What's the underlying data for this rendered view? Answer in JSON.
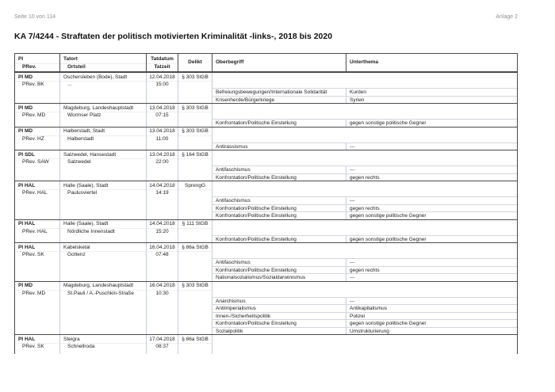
{
  "page": {
    "footer_left": "Seite 10 von 114",
    "footer_right": "Anlage 2",
    "title": "KA 7/4244 - Straftaten der politisch motivierten Kriminalität -links-, 2018 bis 2020"
  },
  "table": {
    "headers": {
      "pi": "PI",
      "prev": "PRev.",
      "tatort": "Tatort",
      "ortsteil": "Ortsteil",
      "tatdatum": "Tatdatum",
      "tatzeit": "Tatzeit",
      "delikt": "Delikt",
      "oberbegriff": "Oberbegriff",
      "unterthema": "Unterthema"
    },
    "records": [
      {
        "pi": "PI MD",
        "prev": "PRev. BK",
        "tatort": "Oschersleben (Bode), Stadt",
        "ortsteil": "...",
        "tatdatum": "12.04.2018",
        "tatzeit": "15:00",
        "delikt": "§ 303 StGB",
        "topics": [
          {
            "oberbegriff": "Befreiungsbewegungen/Internationale Solidarität",
            "unterthema": "Kurden"
          },
          {
            "oberbegriff": "Krisenherde/Bürgerkriege",
            "unterthema": "Syrien"
          }
        ]
      },
      {
        "pi": "PI MD",
        "prev": "PRev. MD",
        "tatort": "Magdeburg, Landeshauptstadt",
        "ortsteil": "Wormser Platz",
        "tatdatum": "13.04.2018",
        "tatzeit": "07:15",
        "delikt": "§ 303 StGB",
        "topics": [
          {
            "oberbegriff": "Konfrontation/Politische Einstellung",
            "unterthema": "gegen sonstige politische Gegner"
          }
        ]
      },
      {
        "pi": "PI MD",
        "prev": "PRev. HZ",
        "tatort": "Halberstadt, Stadt",
        "ortsteil": "Halberstadt",
        "tatdatum": "13.04.2018",
        "tatzeit": "11:00",
        "delikt": "§ 303 StGB",
        "topics": [
          {
            "oberbegriff": "Antirassismus",
            "unterthema": "---"
          }
        ]
      },
      {
        "pi": "PI SDL",
        "prev": "PRev. SAW",
        "tatort": "Salzwedel, Hansestadt",
        "ortsteil": "Salzwedel",
        "tatdatum": "13.04.2018",
        "tatzeit": "22:00",
        "delikt": "§ 164 StGB",
        "topics": [
          {
            "oberbegriff": "Antifaschismus",
            "unterthema": "---"
          },
          {
            "oberbegriff": "Konfrontation/Politische Einstellung",
            "unterthema": "gegen rechts"
          }
        ]
      },
      {
        "pi": "PI HAL",
        "prev": "PRev. HAL",
        "tatort": "Halle (Saale), Stadt",
        "ortsteil": "Paulusviertel",
        "tatdatum": "14.04.2018",
        "tatzeit": "14:19",
        "delikt": "SprengG",
        "topics": [
          {
            "oberbegriff": "Antifaschismus",
            "unterthema": "---"
          },
          {
            "oberbegriff": "Konfrontation/Politische Einstellung",
            "unterthema": "gegen rechts"
          },
          {
            "oberbegriff": "Konfrontation/Politische Einstellung",
            "unterthema": "gegen sonstige politische Gegner"
          }
        ]
      },
      {
        "pi": "PI HAL",
        "prev": "PRev. HAL",
        "tatort": "Halle (Saale), Stadt",
        "ortsteil": "Nördliche Innenstadt",
        "tatdatum": "14.04.2018",
        "tatzeit": "15:20",
        "delikt": "§ 111 StGB",
        "topics": [
          {
            "oberbegriff": "Konfrontation/Politische Einstellung",
            "unterthema": "gegen sonstige politische Gegner"
          }
        ]
      },
      {
        "pi": "PI HAL",
        "prev": "PRev. SK",
        "tatort": "Kabelsketal",
        "ortsteil": "Gottenz",
        "tatdatum": "16.04.2018",
        "tatzeit": "07:48",
        "delikt": "§ 86a StGB",
        "topics": [
          {
            "oberbegriff": "Antifaschismus",
            "unterthema": "---"
          },
          {
            "oberbegriff": "Konfrontation/Politische Einstellung",
            "unterthema": "gegen rechts"
          },
          {
            "oberbegriff": "Nationalsozialismus/Sozialdarwinismus",
            "unterthema": "---"
          }
        ]
      },
      {
        "pi": "PI MD",
        "prev": "PRev. MD",
        "tatort": "Magdeburg, Landeshauptstadt",
        "ortsteil": "St.Pauli / A.-Puschkin-Straße",
        "tatdatum": "16.04.2018",
        "tatzeit": "10:30",
        "delikt": "§ 303 StGB",
        "topics": [
          {
            "oberbegriff": "Anarchismus",
            "unterthema": "---"
          },
          {
            "oberbegriff": "Antiimperialismus",
            "unterthema": "Antikapitalismus"
          },
          {
            "oberbegriff": "Innen-/Sicherheitspolitik",
            "unterthema": "Polizei"
          },
          {
            "oberbegriff": "Konfrontation/Politische Einstellung",
            "unterthema": "gegen sonstige politische Gegner"
          },
          {
            "oberbegriff": "Sozialpolitik",
            "unterthema": "Umstrukturierung"
          }
        ]
      },
      {
        "pi": "PI HAL",
        "prev": "PRev. SK",
        "tatort": "Steigra",
        "ortsteil": "Schnellroda",
        "tatdatum": "17.04.2018",
        "tatzeit": "08:37",
        "delikt": "§ 86a StGB",
        "topics": []
      }
    ]
  }
}
